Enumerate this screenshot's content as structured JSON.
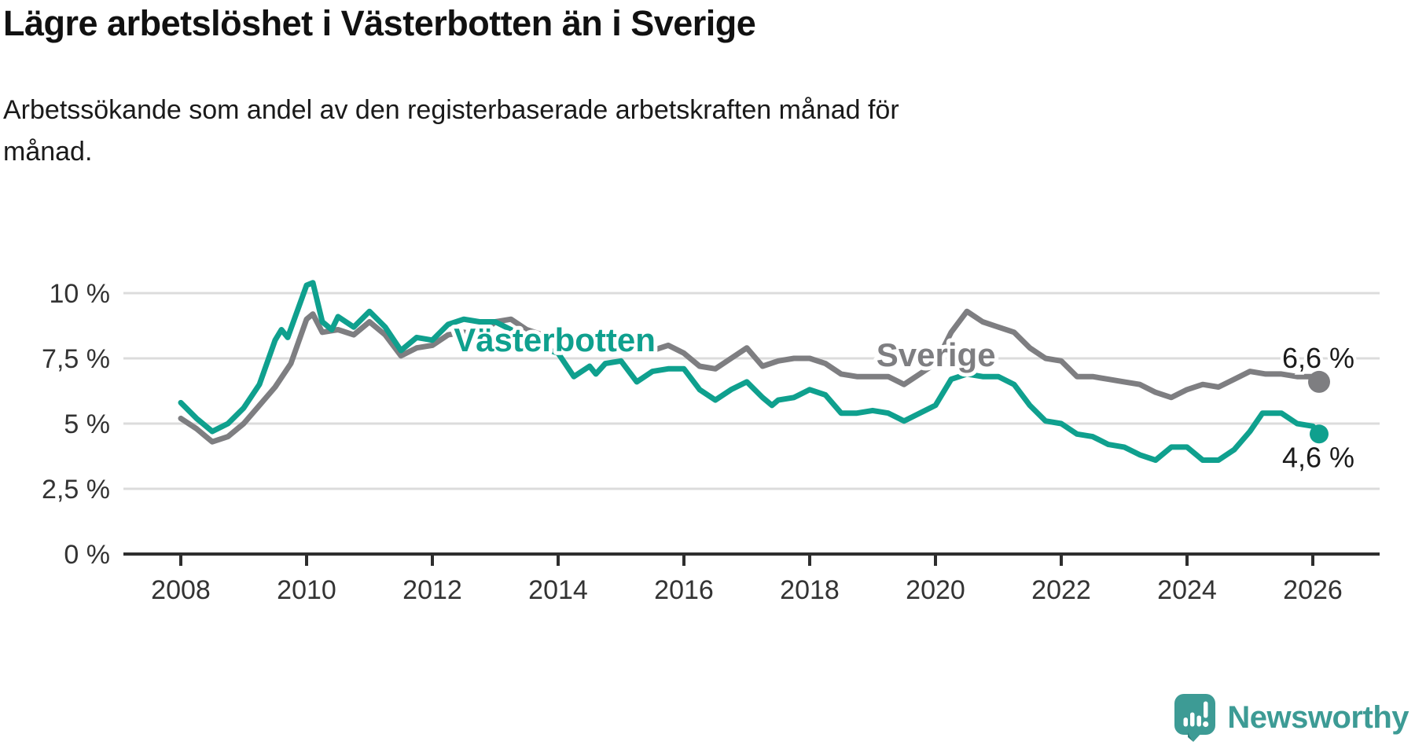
{
  "header": {
    "title": "Lägre arbetslöshet i Västerbotten än i Sverige",
    "subtitle_lines": [
      "Arbetssökande som andel av den registerbaserade arbetskraften månad för",
      "månad."
    ]
  },
  "branding": {
    "name": "Newsworthy",
    "logo_icon": "bar-chart-speech-bubble-icon",
    "color": "#3D9B95"
  },
  "colors": {
    "vasterbotten": "#0FA08E",
    "sverige": "#7E7E81",
    "gridline": "#dcdcdc",
    "axis": "#2e2e2e",
    "tick_text": "#333333",
    "label_text": "#1a1a1a",
    "halo": "#ffffff"
  },
  "chart_data": {
    "type": "line",
    "title": "Lägre arbetslöshet i Västerbotten än i Sverige",
    "subtitle": "Arbetssökande som andel av den registerbaserade arbetskraften månad för månad.",
    "unit": "%",
    "grid": "horizontal",
    "legend_position": "inline-labels",
    "x_axis": {
      "ticks": [
        {
          "year": 2008,
          "label": "2008"
        },
        {
          "year": 2010,
          "label": "2010"
        },
        {
          "year": 2012,
          "label": "2012"
        },
        {
          "year": 2014,
          "label": "2014"
        },
        {
          "year": 2016,
          "label": "2016"
        },
        {
          "year": 2018,
          "label": "2018"
        },
        {
          "year": 2020,
          "label": "2020"
        },
        {
          "year": 2022,
          "label": "2022"
        },
        {
          "year": 2024,
          "label": "2024"
        },
        {
          "year": 2026,
          "label": "2026"
        }
      ],
      "range": [
        2007.1,
        2027.0
      ]
    },
    "y_axis": {
      "ticks": [
        {
          "value": 0,
          "label": "0 %"
        },
        {
          "value": 2.5,
          "label": "2,5 %"
        },
        {
          "value": 5,
          "label": "5 %"
        },
        {
          "value": 7.5,
          "label": "7,5 %"
        },
        {
          "value": 10,
          "label": "10 %"
        }
      ],
      "range": [
        0,
        11.2
      ]
    },
    "series": [
      {
        "name": "Sverige",
        "color_key": "sverige",
        "end_label": "6,6 %",
        "end_value": 6.6,
        "dot_radius": 14,
        "label_pos": {
          "year": 2019.06,
          "value": 7.2
        },
        "end_label_offset": {
          "dx": 45,
          "dy": -18
        },
        "points": [
          [
            2008.0,
            5.2
          ],
          [
            2008.25,
            4.8
          ],
          [
            2008.5,
            4.3
          ],
          [
            2008.75,
            4.5
          ],
          [
            2009.0,
            5.0
          ],
          [
            2009.25,
            5.7
          ],
          [
            2009.5,
            6.4
          ],
          [
            2009.75,
            7.3
          ],
          [
            2010.0,
            9.0
          ],
          [
            2010.1,
            9.2
          ],
          [
            2010.25,
            8.5
          ],
          [
            2010.5,
            8.6
          ],
          [
            2010.75,
            8.4
          ],
          [
            2011.0,
            8.9
          ],
          [
            2011.25,
            8.4
          ],
          [
            2011.5,
            7.6
          ],
          [
            2011.75,
            7.9
          ],
          [
            2012.0,
            8.0
          ],
          [
            2012.25,
            8.4
          ],
          [
            2012.5,
            8.5
          ],
          [
            2012.75,
            8.4
          ],
          [
            2013.0,
            8.9
          ],
          [
            2013.25,
            9.0
          ],
          [
            2013.5,
            8.6
          ],
          [
            2013.75,
            8.4
          ],
          [
            2014.0,
            8.2
          ],
          [
            2014.25,
            8.0
          ],
          [
            2014.5,
            8.0
          ],
          [
            2014.75,
            7.9
          ],
          [
            2015.0,
            7.9
          ],
          [
            2015.25,
            7.8
          ],
          [
            2015.5,
            7.8
          ],
          [
            2015.75,
            8.0
          ],
          [
            2016.0,
            7.7
          ],
          [
            2016.25,
            7.2
          ],
          [
            2016.5,
            7.1
          ],
          [
            2016.75,
            7.5
          ],
          [
            2017.0,
            7.9
          ],
          [
            2017.25,
            7.2
          ],
          [
            2017.5,
            7.4
          ],
          [
            2017.75,
            7.5
          ],
          [
            2018.0,
            7.5
          ],
          [
            2018.25,
            7.3
          ],
          [
            2018.5,
            6.9
          ],
          [
            2018.75,
            6.8
          ],
          [
            2019.0,
            6.8
          ],
          [
            2019.25,
            6.8
          ],
          [
            2019.5,
            6.5
          ],
          [
            2019.75,
            6.9
          ],
          [
            2020.0,
            7.3
          ],
          [
            2020.25,
            8.5
          ],
          [
            2020.5,
            9.3
          ],
          [
            2020.75,
            8.9
          ],
          [
            2021.0,
            8.7
          ],
          [
            2021.25,
            8.5
          ],
          [
            2021.5,
            7.9
          ],
          [
            2021.75,
            7.5
          ],
          [
            2022.0,
            7.4
          ],
          [
            2022.25,
            6.8
          ],
          [
            2022.5,
            6.8
          ],
          [
            2022.75,
            6.7
          ],
          [
            2023.0,
            6.6
          ],
          [
            2023.25,
            6.5
          ],
          [
            2023.5,
            6.2
          ],
          [
            2023.75,
            6.0
          ],
          [
            2024.0,
            6.3
          ],
          [
            2024.25,
            6.5
          ],
          [
            2024.5,
            6.4
          ],
          [
            2024.75,
            6.7
          ],
          [
            2025.0,
            7.0
          ],
          [
            2025.25,
            6.9
          ],
          [
            2025.5,
            6.9
          ],
          [
            2025.75,
            6.8
          ],
          [
            2026.0,
            6.8
          ],
          [
            2026.1,
            6.6
          ]
        ]
      },
      {
        "name": "Västerbotten",
        "color_key": "vasterbotten",
        "end_label": "4,6 %",
        "end_value": 4.6,
        "dot_radius": 12,
        "label_pos": {
          "year": 2012.34,
          "value": 7.77
        },
        "end_label_offset": {
          "dx": 45,
          "dy": 42
        },
        "points": [
          [
            2008.0,
            5.8
          ],
          [
            2008.25,
            5.2
          ],
          [
            2008.5,
            4.7
          ],
          [
            2008.75,
            5.0
          ],
          [
            2009.0,
            5.6
          ],
          [
            2009.25,
            6.5
          ],
          [
            2009.5,
            8.2
          ],
          [
            2009.6,
            8.6
          ],
          [
            2009.7,
            8.3
          ],
          [
            2010.0,
            10.3
          ],
          [
            2010.1,
            10.4
          ],
          [
            2010.25,
            8.9
          ],
          [
            2010.4,
            8.6
          ],
          [
            2010.5,
            9.1
          ],
          [
            2010.75,
            8.7
          ],
          [
            2011.0,
            9.3
          ],
          [
            2011.25,
            8.7
          ],
          [
            2011.5,
            7.8
          ],
          [
            2011.75,
            8.3
          ],
          [
            2012.0,
            8.2
          ],
          [
            2012.25,
            8.8
          ],
          [
            2012.5,
            9.0
          ],
          [
            2012.75,
            8.9
          ],
          [
            2013.0,
            8.9
          ],
          [
            2013.25,
            8.6
          ],
          [
            2013.5,
            8.2
          ],
          [
            2013.75,
            7.9
          ],
          [
            2014.0,
            7.7
          ],
          [
            2014.25,
            6.8
          ],
          [
            2014.5,
            7.2
          ],
          [
            2014.6,
            6.9
          ],
          [
            2014.75,
            7.3
          ],
          [
            2015.0,
            7.4
          ],
          [
            2015.25,
            6.6
          ],
          [
            2015.5,
            7.0
          ],
          [
            2015.75,
            7.1
          ],
          [
            2016.0,
            7.1
          ],
          [
            2016.25,
            6.3
          ],
          [
            2016.5,
            5.9
          ],
          [
            2016.75,
            6.3
          ],
          [
            2017.0,
            6.6
          ],
          [
            2017.25,
            6.0
          ],
          [
            2017.4,
            5.7
          ],
          [
            2017.5,
            5.9
          ],
          [
            2017.75,
            6.0
          ],
          [
            2018.0,
            6.3
          ],
          [
            2018.25,
            6.1
          ],
          [
            2018.5,
            5.4
          ],
          [
            2018.75,
            5.4
          ],
          [
            2019.0,
            5.5
          ],
          [
            2019.25,
            5.4
          ],
          [
            2019.5,
            5.1
          ],
          [
            2019.75,
            5.4
          ],
          [
            2020.0,
            5.7
          ],
          [
            2020.25,
            6.7
          ],
          [
            2020.5,
            6.9
          ],
          [
            2020.75,
            6.8
          ],
          [
            2021.0,
            6.8
          ],
          [
            2021.25,
            6.5
          ],
          [
            2021.5,
            5.7
          ],
          [
            2021.75,
            5.1
          ],
          [
            2022.0,
            5.0
          ],
          [
            2022.25,
            4.6
          ],
          [
            2022.5,
            4.5
          ],
          [
            2022.75,
            4.2
          ],
          [
            2023.0,
            4.1
          ],
          [
            2023.25,
            3.8
          ],
          [
            2023.5,
            3.6
          ],
          [
            2023.75,
            4.1
          ],
          [
            2024.0,
            4.1
          ],
          [
            2024.25,
            3.6
          ],
          [
            2024.5,
            3.6
          ],
          [
            2024.75,
            4.0
          ],
          [
            2025.0,
            4.7
          ],
          [
            2025.2,
            5.4
          ],
          [
            2025.5,
            5.4
          ],
          [
            2025.75,
            5.0
          ],
          [
            2026.0,
            4.9
          ],
          [
            2026.1,
            4.6
          ]
        ]
      }
    ]
  }
}
